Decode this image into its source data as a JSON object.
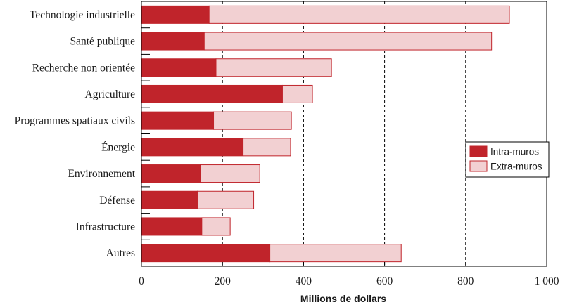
{
  "chart_data": {
    "type": "bar",
    "orientation": "horizontal",
    "stacked": true,
    "categories": [
      "Technologie industrielle",
      "Santé publique",
      "Recherche non orientée",
      "Agriculture",
      "Programmes spatiaux civils",
      "Énergie",
      "Environnement",
      "Défense",
      "Infrastructure",
      "Autres"
    ],
    "series": [
      {
        "name": "Intra-muros",
        "color": "#c0242b",
        "values": [
          167,
          155,
          184,
          348,
          178,
          251,
          145,
          138,
          149,
          317
        ]
      },
      {
        "name": "Extra-muros",
        "color": "#f2d0d2",
        "values": [
          741,
          709,
          285,
          74,
          192,
          117,
          147,
          139,
          70,
          324
        ]
      }
    ],
    "xlabel": "Millions de dollars",
    "xlim": [
      0,
      1000
    ],
    "xticks": [
      0,
      200,
      400,
      600,
      800,
      1000
    ],
    "xtick_labels": [
      "0",
      "200",
      "400",
      "600",
      "800",
      "1 000"
    ],
    "grid": "vertical dashed",
    "legend_position": "right",
    "bar_outline_color": "#c0242b"
  }
}
